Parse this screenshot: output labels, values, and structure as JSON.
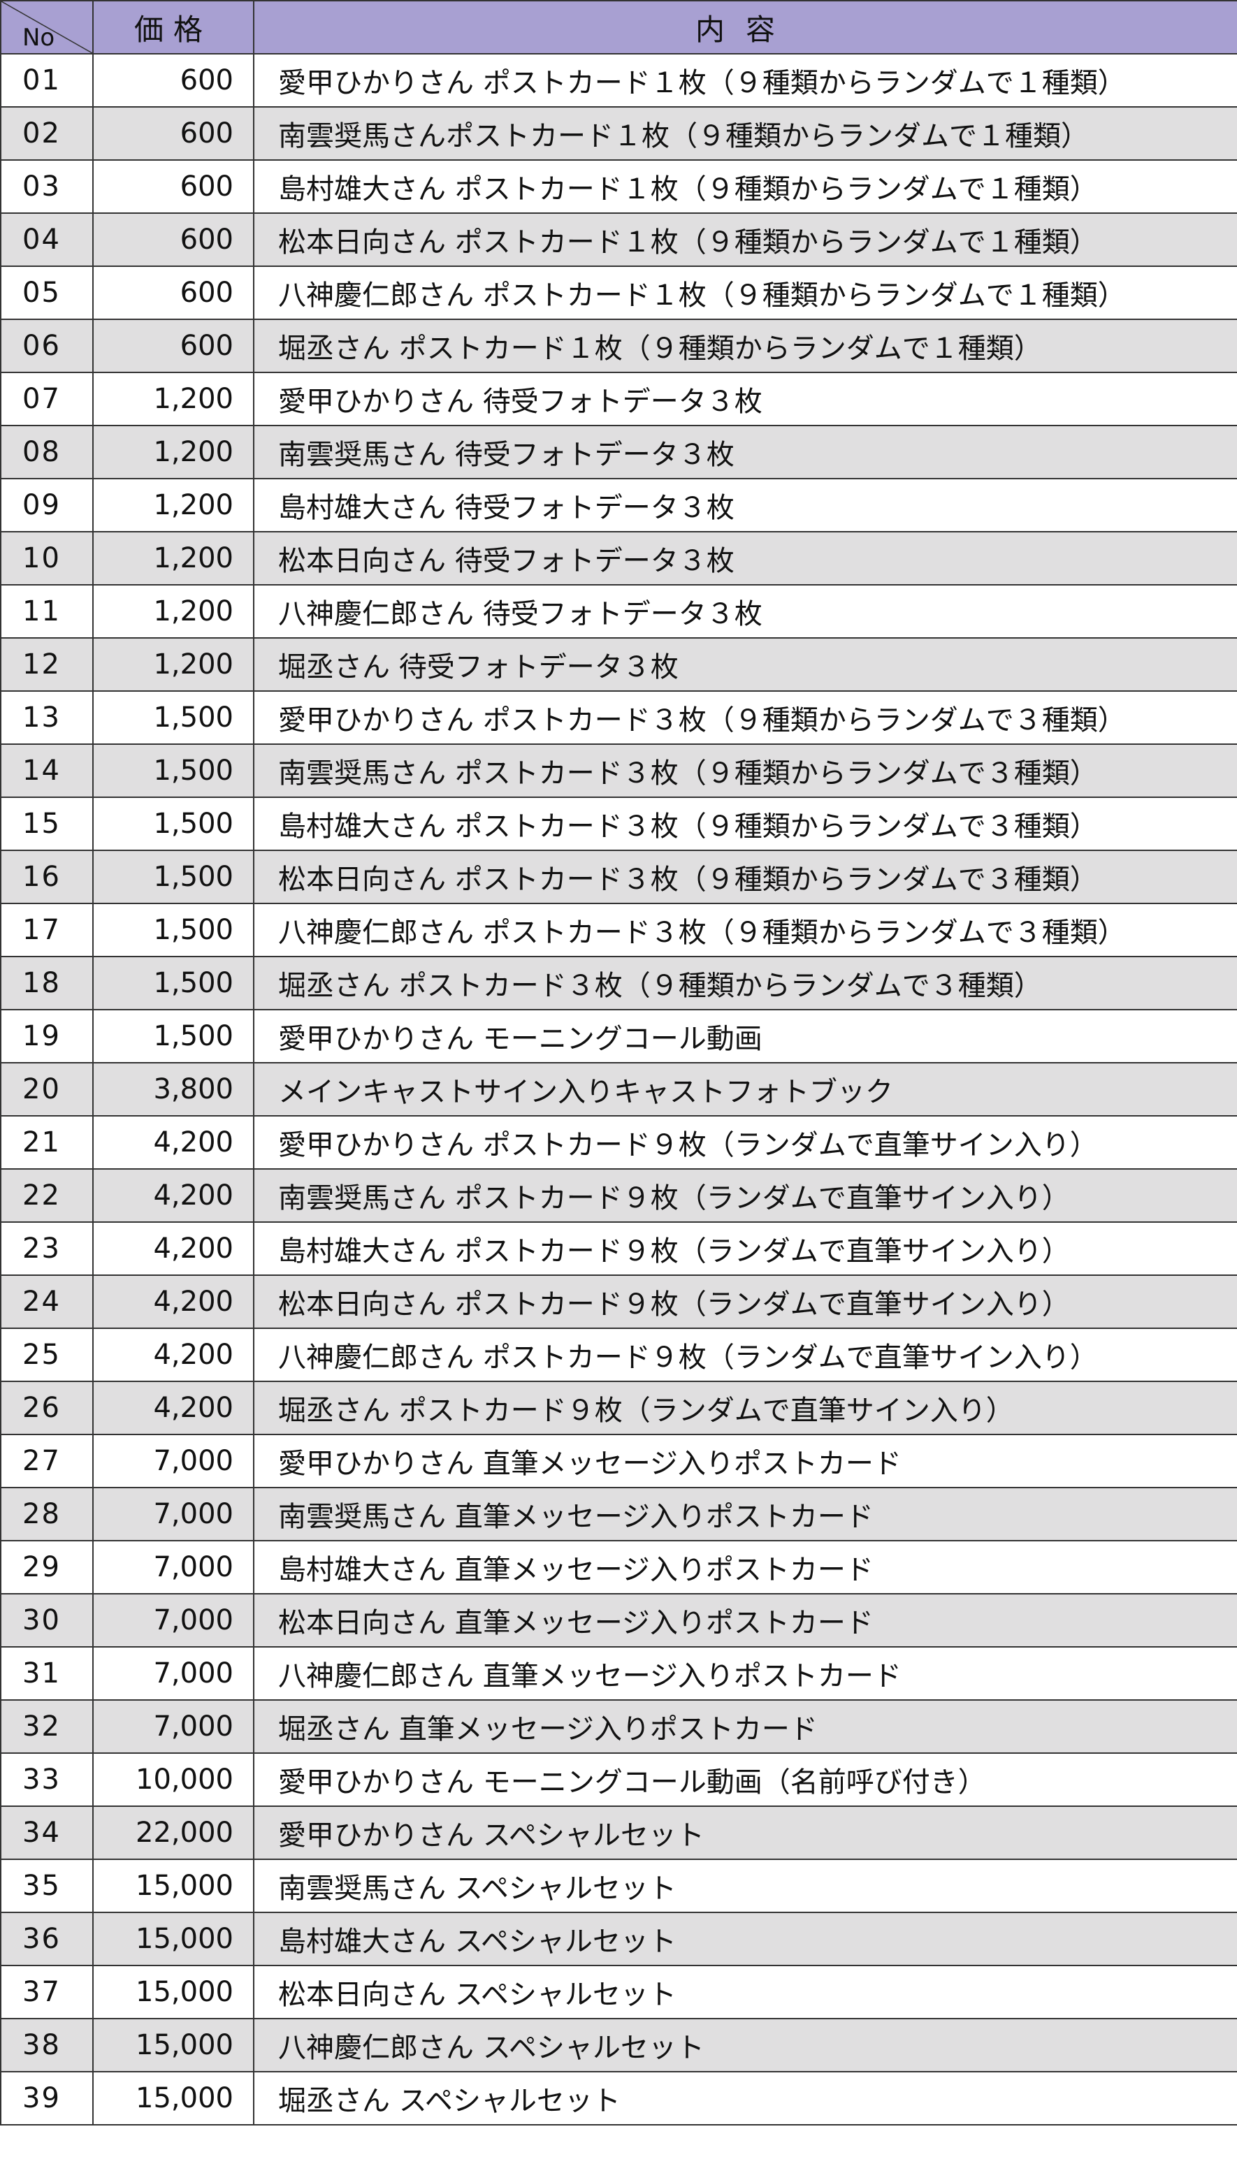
{
  "header": {
    "no": "No",
    "price": "価格",
    "content": "内容"
  },
  "colors": {
    "header_bg": "#a8a0d2",
    "stripe_bg": "#e0dfe0"
  },
  "rows": [
    {
      "no": "01",
      "price": "600",
      "content": "愛甲ひかりさん ポストカード１枚（９種類からランダムで１種類）"
    },
    {
      "no": "02",
      "price": "600",
      "content": "南雲奨馬さんポストカード１枚（９種類からランダムで１種類）"
    },
    {
      "no": "03",
      "price": "600",
      "content": "島村雄大さん ポストカード１枚（９種類からランダムで１種類）"
    },
    {
      "no": "04",
      "price": "600",
      "content": "松本日向さん ポストカード１枚（９種類からランダムで１種類）"
    },
    {
      "no": "05",
      "price": "600",
      "content": "八神慶仁郎さん ポストカード１枚（９種類からランダムで１種類）"
    },
    {
      "no": "06",
      "price": "600",
      "content": "堀丞さん ポストカード１枚（９種類からランダムで１種類）"
    },
    {
      "no": "07",
      "price": "1,200",
      "content": "愛甲ひかりさん 待受フォトデータ３枚"
    },
    {
      "no": "08",
      "price": "1,200",
      "content": "南雲奨馬さん 待受フォトデータ３枚"
    },
    {
      "no": "09",
      "price": "1,200",
      "content": "島村雄大さん 待受フォトデータ３枚"
    },
    {
      "no": "10",
      "price": "1,200",
      "content": "松本日向さん 待受フォトデータ３枚"
    },
    {
      "no": "11",
      "price": "1,200",
      "content": "八神慶仁郎さん 待受フォトデータ３枚"
    },
    {
      "no": "12",
      "price": "1,200",
      "content": "堀丞さん 待受フォトデータ３枚"
    },
    {
      "no": "13",
      "price": "1,500",
      "content": "愛甲ひかりさん ポストカード３枚（９種類からランダムで３種類）"
    },
    {
      "no": "14",
      "price": "1,500",
      "content": "南雲奨馬さん ポストカード３枚（９種類からランダムで３種類）"
    },
    {
      "no": "15",
      "price": "1,500",
      "content": "島村雄大さん ポストカード３枚（９種類からランダムで３種類）"
    },
    {
      "no": "16",
      "price": "1,500",
      "content": "松本日向さん ポストカード３枚（９種類からランダムで３種類）"
    },
    {
      "no": "17",
      "price": "1,500",
      "content": "八神慶仁郎さん ポストカード３枚（９種類からランダムで３種類）"
    },
    {
      "no": "18",
      "price": "1,500",
      "content": "堀丞さん ポストカード３枚（９種類からランダムで３種類）"
    },
    {
      "no": "19",
      "price": "1,500",
      "content": "愛甲ひかりさん モーニングコール動画"
    },
    {
      "no": "20",
      "price": "3,800",
      "content": "メインキャストサイン入りキャストフォトブック"
    },
    {
      "no": "21",
      "price": "4,200",
      "content": "愛甲ひかりさん ポストカード９枚（ランダムで直筆サイン入り）"
    },
    {
      "no": "22",
      "price": "4,200",
      "content": "南雲奨馬さん ポストカード９枚（ランダムで直筆サイン入り）"
    },
    {
      "no": "23",
      "price": "4,200",
      "content": "島村雄大さん ポストカード９枚（ランダムで直筆サイン入り）"
    },
    {
      "no": "24",
      "price": "4,200",
      "content": "松本日向さん ポストカード９枚（ランダムで直筆サイン入り）"
    },
    {
      "no": "25",
      "price": "4,200",
      "content": "八神慶仁郎さん ポストカード９枚（ランダムで直筆サイン入り）"
    },
    {
      "no": "26",
      "price": "4,200",
      "content": "堀丞さん ポストカード９枚（ランダムで直筆サイン入り）"
    },
    {
      "no": "27",
      "price": "7,000",
      "content": "愛甲ひかりさん 直筆メッセージ入りポストカード"
    },
    {
      "no": "28",
      "price": "7,000",
      "content": "南雲奨馬さん 直筆メッセージ入りポストカード"
    },
    {
      "no": "29",
      "price": "7,000",
      "content": "島村雄大さん 直筆メッセージ入りポストカード"
    },
    {
      "no": "30",
      "price": "7,000",
      "content": "松本日向さん 直筆メッセージ入りポストカード"
    },
    {
      "no": "31",
      "price": "7,000",
      "content": "八神慶仁郎さん 直筆メッセージ入りポストカード"
    },
    {
      "no": "32",
      "price": "7,000",
      "content": "堀丞さん 直筆メッセージ入りポストカード"
    },
    {
      "no": "33",
      "price": "10,000",
      "content": "愛甲ひかりさん モーニングコール動画（名前呼び付き）"
    },
    {
      "no": "34",
      "price": "22,000",
      "content": "愛甲ひかりさん スペシャルセット"
    },
    {
      "no": "35",
      "price": "15,000",
      "content": "南雲奨馬さん スペシャルセット"
    },
    {
      "no": "36",
      "price": "15,000",
      "content": "島村雄大さん スペシャルセット"
    },
    {
      "no": "37",
      "price": "15,000",
      "content": "松本日向さん スペシャルセット"
    },
    {
      "no": "38",
      "price": "15,000",
      "content": "八神慶仁郎さん スペシャルセット"
    },
    {
      "no": "39",
      "price": "15,000",
      "content": "堀丞さん スペシャルセット"
    }
  ]
}
